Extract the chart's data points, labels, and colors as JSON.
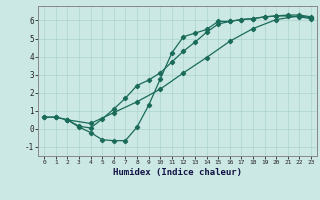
{
  "xlabel": "Humidex (Indice chaleur)",
  "background_color": "#cce8e4",
  "grid_color": "#aad4cc",
  "line_color": "#1a6b5a",
  "xlim": [
    -0.5,
    23.5
  ],
  "ylim": [
    -1.5,
    6.8
  ],
  "yticks": [
    -1,
    0,
    1,
    2,
    3,
    4,
    5,
    6
  ],
  "xticks": [
    0,
    1,
    2,
    3,
    4,
    5,
    6,
    7,
    8,
    9,
    10,
    11,
    12,
    13,
    14,
    15,
    16,
    17,
    18,
    19,
    20,
    21,
    22,
    23
  ],
  "curve1_x": [
    0,
    1,
    2,
    3,
    4,
    5,
    6,
    7,
    8,
    9,
    10,
    11,
    12,
    13,
    14,
    15,
    16,
    17,
    18,
    19,
    20,
    21,
    22,
    23
  ],
  "curve1_y": [
    0.65,
    0.65,
    0.5,
    0.1,
    -0.2,
    -0.6,
    -0.65,
    -0.65,
    0.1,
    1.3,
    2.75,
    4.2,
    5.1,
    5.3,
    5.5,
    5.95,
    5.95,
    6.05,
    6.1,
    6.2,
    6.25,
    6.3,
    6.3,
    6.2
  ],
  "curve2_x": [
    0,
    1,
    2,
    3,
    4,
    5,
    6,
    7,
    8,
    9,
    10,
    11,
    12,
    13,
    14,
    15,
    16,
    17,
    18,
    19,
    20,
    21,
    22,
    23
  ],
  "curve2_y": [
    0.65,
    0.65,
    0.5,
    0.15,
    0.05,
    0.55,
    1.1,
    1.7,
    2.4,
    2.7,
    3.1,
    3.7,
    4.3,
    4.8,
    5.35,
    5.8,
    5.95,
    6.05,
    6.1,
    6.2,
    6.25,
    6.25,
    6.2,
    6.1
  ],
  "curve3_x": [
    2,
    4,
    6,
    8,
    10,
    12,
    14,
    16,
    18,
    20,
    22,
    23
  ],
  "curve3_y": [
    0.5,
    0.3,
    0.9,
    1.5,
    2.2,
    3.1,
    3.95,
    4.85,
    5.55,
    6.05,
    6.25,
    6.15
  ]
}
